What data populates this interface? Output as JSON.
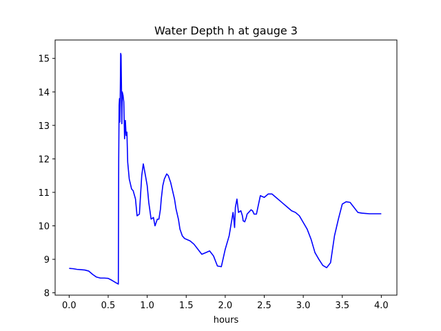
{
  "chart_data": {
    "type": "line",
    "title": "Water Depth h at gauge 3",
    "xlabel": "hours",
    "ylabel": "",
    "xlim": [
      -0.18,
      4.2
    ],
    "ylim": [
      7.93,
      15.55
    ],
    "xticks": [
      0.0,
      0.5,
      1.0,
      1.5,
      2.0,
      2.5,
      3.0,
      3.5,
      4.0
    ],
    "xtick_labels": [
      "0.0",
      "0.5",
      "1.0",
      "1.5",
      "2.0",
      "2.5",
      "3.0",
      "3.5",
      "4.0"
    ],
    "yticks": [
      8,
      9,
      10,
      11,
      12,
      13,
      14,
      15
    ],
    "ytick_labels": [
      "8",
      "9",
      "10",
      "11",
      "12",
      "13",
      "14",
      "15"
    ],
    "grid": false,
    "legend": "none",
    "series": [
      {
        "color": "#0000ff",
        "x": [
          0.0,
          0.05,
          0.1,
          0.15,
          0.2,
          0.25,
          0.3,
          0.35,
          0.4,
          0.45,
          0.5,
          0.55,
          0.6,
          0.63,
          0.635,
          0.64,
          0.645,
          0.65,
          0.655,
          0.66,
          0.665,
          0.67,
          0.675,
          0.68,
          0.69,
          0.7,
          0.71,
          0.72,
          0.73,
          0.74,
          0.75,
          0.77,
          0.8,
          0.82,
          0.85,
          0.87,
          0.9,
          0.93,
          0.95,
          0.97,
          1.0,
          1.02,
          1.05,
          1.08,
          1.1,
          1.13,
          1.15,
          1.17,
          1.18,
          1.19,
          1.2,
          1.22,
          1.25,
          1.27,
          1.3,
          1.32,
          1.35,
          1.37,
          1.4,
          1.42,
          1.45,
          1.48,
          1.5,
          1.55,
          1.6,
          1.65,
          1.7,
          1.75,
          1.8,
          1.85,
          1.9,
          1.95,
          2.0,
          2.05,
          2.1,
          2.11,
          2.12,
          2.13,
          2.15,
          2.17,
          2.2,
          2.22,
          2.23,
          2.25,
          2.27,
          2.28,
          2.3,
          2.32,
          2.33,
          2.35,
          2.37,
          2.4,
          2.45,
          2.5,
          2.55,
          2.6,
          2.65,
          2.7,
          2.75,
          2.8,
          2.85,
          2.9,
          2.95,
          3.0,
          3.05,
          3.1,
          3.15,
          3.2,
          3.25,
          3.3,
          3.35,
          3.4,
          3.45,
          3.5,
          3.55,
          3.6,
          3.65,
          3.7,
          3.75,
          3.8,
          3.85,
          3.9,
          3.95,
          4.0
        ],
        "y": [
          8.73,
          8.72,
          8.7,
          8.69,
          8.68,
          8.65,
          8.55,
          8.47,
          8.44,
          8.44,
          8.43,
          8.37,
          8.3,
          8.26,
          12.0,
          13.6,
          13.8,
          13.1,
          14.0,
          15.15,
          15.1,
          14.2,
          13.05,
          14.0,
          13.9,
          13.7,
          12.6,
          13.15,
          12.7,
          12.8,
          11.9,
          11.4,
          11.1,
          11.05,
          10.8,
          10.3,
          10.35,
          11.5,
          11.85,
          11.6,
          11.2,
          10.7,
          10.2,
          10.25,
          10.0,
          10.2,
          10.2,
          10.5,
          10.8,
          11.0,
          11.2,
          11.4,
          11.55,
          11.5,
          11.3,
          11.1,
          10.8,
          10.5,
          10.2,
          9.9,
          9.7,
          9.62,
          9.6,
          9.55,
          9.45,
          9.3,
          9.15,
          9.2,
          9.25,
          9.1,
          8.8,
          8.78,
          9.3,
          9.7,
          10.4,
          10.2,
          9.95,
          10.55,
          10.8,
          10.4,
          10.45,
          10.3,
          10.15,
          10.12,
          10.25,
          10.35,
          10.4,
          10.45,
          10.48,
          10.45,
          10.35,
          10.35,
          10.9,
          10.85,
          10.95,
          10.95,
          10.85,
          10.75,
          10.65,
          10.55,
          10.45,
          10.4,
          10.3,
          10.1,
          9.9,
          9.6,
          9.2,
          9.0,
          8.82,
          8.75,
          8.9,
          9.7,
          10.2,
          10.65,
          10.72,
          10.7,
          10.55,
          10.4,
          10.38,
          10.37,
          10.36,
          10.36,
          10.36,
          10.36
        ]
      }
    ]
  }
}
